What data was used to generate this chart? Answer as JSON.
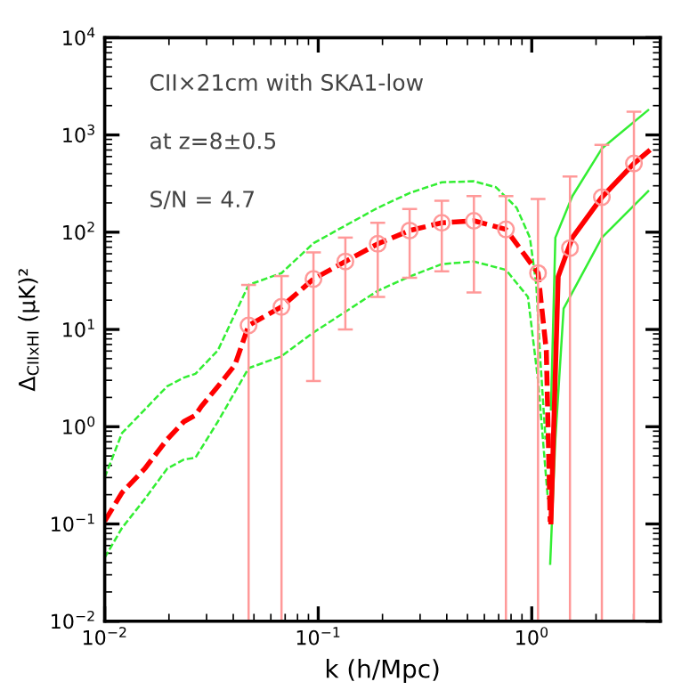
{
  "chart_data": {
    "type": "line",
    "xlabel": "k (h/Mpc)",
    "ylabel": "Δ$_{CIIxHI}$ (μK)²",
    "log": "xy",
    "grid": false,
    "xlim": [
      0.01,
      4
    ],
    "ylim": [
      0.01,
      10000
    ],
    "xticks": [
      {
        "value": 0.01,
        "label": "10$^{−2}$"
      },
      {
        "value": 0.1,
        "label": "10$^{−1}$"
      },
      {
        "value": 1,
        "label": "10$^{0}$"
      }
    ],
    "yticks": [
      {
        "value": 0.01,
        "label": "10$^{−2}$"
      },
      {
        "value": 0.1,
        "label": "10$^{−1}$"
      },
      {
        "value": 1,
        "label": "10$^{0}$"
      },
      {
        "value": 10,
        "label": "10$^{1}$"
      },
      {
        "value": 100,
        "label": "10$^{2}$"
      },
      {
        "value": 1000,
        "label": "10$^{3}$"
      },
      {
        "value": 10000,
        "label": "10$^{4}$"
      }
    ],
    "annotations": [
      "CII×21cm with SKA1-low",
      "at z=8±0.5",
      "S/N = 4.7"
    ],
    "series": [
      {
        "line_style": "dashed",
        "color": "#33ee33",
        "x": [
          0.01,
          0.01205,
          0.0154,
          0.0196,
          0.0235,
          0.0266,
          0.0339,
          0.0472,
          0.0673,
          0.095,
          0.134,
          0.19,
          0.268,
          0.379,
          0.536,
          0.68,
          0.85,
          0.98,
          1.05,
          1.09,
          1.16
        ],
        "values": [
          0.3,
          0.86,
          1.5,
          2.6,
          3.2,
          3.5,
          6.1,
          28.7,
          38,
          77,
          117,
          178,
          253,
          326,
          334,
          290,
          178,
          88,
          29,
          6.1,
          0.74
        ]
      },
      {
        "line_style": "dashed",
        "color": "#33ee33",
        "x": [
          0.01,
          0.01205,
          0.0154,
          0.0196,
          0.0235,
          0.0266,
          0.0339,
          0.0472,
          0.0673,
          0.095,
          0.134,
          0.19,
          0.268,
          0.379,
          0.536,
          0.757,
          0.96,
          1.07,
          1.19
        ],
        "values": [
          0.045,
          0.091,
          0.18,
          0.37,
          0.46,
          0.48,
          1.13,
          4.0,
          5.3,
          9.3,
          15.2,
          25,
          35,
          47,
          50,
          41,
          21.6,
          3.0,
          0.18
        ]
      },
      {
        "line_style": "solid",
        "color": "#33ee33",
        "x": [
          1.23,
          1.29,
          1.55,
          2.13,
          3.51
        ],
        "values": [
          1.5,
          88,
          235,
          725,
          1800
        ]
      },
      {
        "line_style": "solid",
        "color": "#33ee33",
        "x": [
          1.22,
          1.29,
          1.41,
          2.13,
          3.51
        ],
        "values": [
          0.039,
          0.74,
          16.4,
          88,
          264
        ]
      },
      {
        "line_style": "dashed",
        "color": "#ff0000",
        "x": [
          0.01,
          0.01205,
          0.0154,
          0.0196,
          0.0235,
          0.0266,
          0.0283,
          0.0339,
          0.0407,
          0.0472,
          0.0673,
          0.095,
          0.134,
          0.19,
          0.268,
          0.379,
          0.536,
          0.757,
          1.07,
          1.17,
          1.22
        ],
        "values": [
          0.107,
          0.21,
          0.37,
          0.74,
          1.13,
          1.31,
          1.61,
          2.6,
          4.3,
          11.0,
          17.1,
          33,
          50,
          76,
          104,
          125,
          131,
          107,
          38,
          6.1,
          0.105
        ]
      },
      {
        "line_style": "solid",
        "color": "#ff0000",
        "x": [
          1.23,
          1.33,
          1.55,
          2.13,
          3.01,
          3.51
        ],
        "values": [
          0.105,
          35,
          88,
          229,
          509,
          675
        ]
      },
      {
        "type": "scatter",
        "marker": "circle",
        "color": "#ff9999",
        "x": [
          0.0472,
          0.0673,
          0.095,
          0.134,
          0.19,
          0.268,
          0.379,
          0.536,
          0.757,
          1.07,
          1.51,
          2.13,
          3.01
        ],
        "values": [
          11.0,
          17.1,
          33,
          50,
          76,
          104,
          125,
          131,
          107,
          38,
          68.6,
          229,
          509
        ],
        "errors": [
          [
            0.01,
            28.7
          ],
          [
            0.01,
            35.4
          ],
          [
            2.95,
            62
          ],
          [
            10,
            88
          ],
          [
            21.6,
            125
          ],
          [
            34,
            173
          ],
          [
            39.6,
            210
          ],
          [
            24,
            235
          ],
          [
            0.01,
            235
          ],
          [
            0.01,
            219
          ],
          [
            0.01,
            374
          ],
          [
            0.01,
            789
          ],
          [
            0.01,
            1730
          ]
        ]
      }
    ]
  }
}
